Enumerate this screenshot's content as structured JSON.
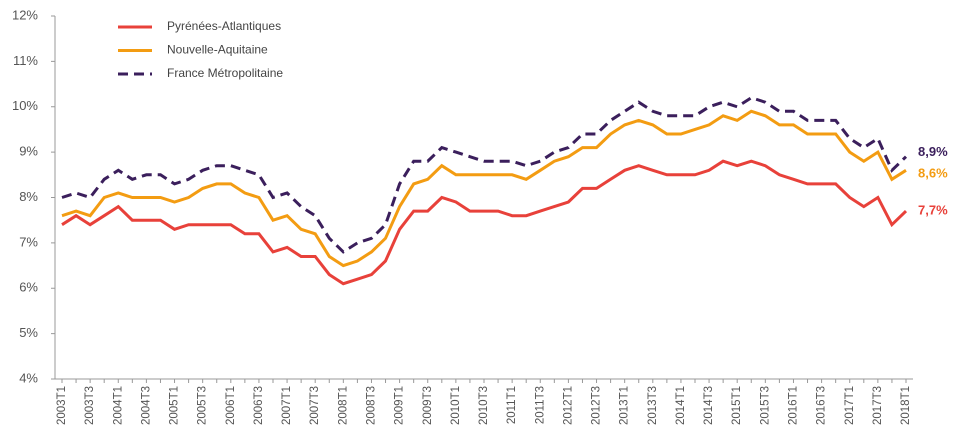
{
  "chart_data": {
    "type": "line",
    "categories": [
      "2003T1",
      null,
      "2003T3",
      null,
      "2004T1",
      null,
      "2004T3",
      null,
      "2005T1",
      null,
      "2005T3",
      null,
      "2006T1",
      null,
      "2006T3",
      null,
      "2007T1",
      null,
      "2007T3",
      null,
      "2008T1",
      null,
      "2008T3",
      null,
      "2009T1",
      null,
      "2009T3",
      null,
      "2010T1",
      null,
      "2010T3",
      null,
      "2011T1",
      null,
      "2011T3",
      null,
      "2012T1",
      null,
      "2012T3",
      null,
      "2013T1",
      null,
      "2013T3",
      null,
      "2014T1",
      null,
      "2014T3",
      null,
      "2015T1",
      null,
      "2015T3",
      null,
      "2016T1",
      null,
      "2016T3",
      null,
      "2017T1",
      null,
      "2017T3",
      null,
      "2018T1"
    ],
    "series": [
      {
        "name": "Pyrénées-Atlantiques",
        "color": "#e8413a",
        "dash": false,
        "values": [
          7.4,
          7.6,
          7.4,
          7.6,
          7.8,
          7.5,
          7.5,
          7.5,
          7.3,
          7.4,
          7.4,
          7.4,
          7.4,
          7.2,
          7.2,
          6.8,
          6.9,
          6.7,
          6.7,
          6.3,
          6.1,
          6.2,
          6.3,
          6.6,
          7.3,
          7.7,
          7.7,
          8.0,
          7.9,
          7.7,
          7.7,
          7.7,
          7.6,
          7.6,
          7.7,
          7.8,
          7.9,
          8.2,
          8.2,
          8.4,
          8.6,
          8.7,
          8.6,
          8.5,
          8.5,
          8.5,
          8.6,
          8.8,
          8.7,
          8.8,
          8.7,
          8.5,
          8.4,
          8.3,
          8.3,
          8.3,
          8.0,
          7.8,
          8.0,
          7.4,
          7.7
        ],
        "value_labels": [
          null,
          null,
          null,
          null,
          null,
          null,
          null,
          null,
          null,
          null,
          null,
          null,
          null,
          null,
          null,
          null,
          null,
          null,
          null,
          null,
          null,
          null,
          null,
          null,
          null,
          null,
          null,
          null,
          null,
          null,
          null,
          null,
          null,
          null,
          null,
          null,
          null,
          null,
          null,
          null,
          null,
          null,
          null,
          null,
          null,
          null,
          null,
          null,
          null,
          null,
          null,
          null,
          null,
          null,
          null,
          null,
          null,
          null,
          null,
          null,
          "7,7%"
        ]
      },
      {
        "name": "Nouvelle-Aquitaine",
        "color": "#f39c12",
        "dash": false,
        "values": [
          7.6,
          7.7,
          7.6,
          8.0,
          8.1,
          8.0,
          8.0,
          8.0,
          7.9,
          8.0,
          8.2,
          8.3,
          8.3,
          8.1,
          8.0,
          7.5,
          7.6,
          7.3,
          7.2,
          6.7,
          6.5,
          6.6,
          6.8,
          7.1,
          7.8,
          8.3,
          8.4,
          8.7,
          8.5,
          8.5,
          8.5,
          8.5,
          8.5,
          8.4,
          8.6,
          8.8,
          8.9,
          9.1,
          9.1,
          9.4,
          9.6,
          9.7,
          9.6,
          9.4,
          9.4,
          9.5,
          9.6,
          9.8,
          9.7,
          9.9,
          9.8,
          9.6,
          9.6,
          9.4,
          9.4,
          9.4,
          9.0,
          8.8,
          9.0,
          8.4,
          8.6
        ],
        "value_labels": [
          null,
          null,
          null,
          null,
          null,
          null,
          null,
          null,
          null,
          null,
          null,
          null,
          null,
          null,
          null,
          null,
          null,
          null,
          null,
          null,
          null,
          null,
          null,
          null,
          null,
          null,
          null,
          null,
          null,
          null,
          null,
          null,
          null,
          null,
          null,
          null,
          null,
          null,
          null,
          null,
          null,
          null,
          null,
          null,
          null,
          null,
          null,
          null,
          null,
          null,
          null,
          null,
          null,
          null,
          null,
          null,
          null,
          null,
          null,
          null,
          "8,6%"
        ]
      },
      {
        "name": "France Métropolitaine",
        "color": "#3b1f5c",
        "dash": true,
        "values": [
          8.0,
          8.1,
          8.0,
          8.4,
          8.6,
          8.4,
          8.5,
          8.5,
          8.3,
          8.4,
          8.6,
          8.7,
          8.7,
          8.6,
          8.5,
          8.0,
          8.1,
          7.8,
          7.6,
          7.1,
          6.8,
          7.0,
          7.1,
          7.4,
          8.3,
          8.8,
          8.8,
          9.1,
          9.0,
          8.9,
          8.8,
          8.8,
          8.8,
          8.7,
          8.8,
          9.0,
          9.1,
          9.4,
          9.4,
          9.7,
          9.9,
          10.1,
          9.9,
          9.8,
          9.8,
          9.8,
          10.0,
          10.1,
          10.0,
          10.2,
          10.1,
          9.9,
          9.9,
          9.7,
          9.7,
          9.7,
          9.3,
          9.1,
          9.3,
          8.6,
          8.9
        ],
        "value_labels": [
          null,
          null,
          null,
          null,
          null,
          null,
          null,
          null,
          null,
          null,
          null,
          null,
          null,
          null,
          null,
          null,
          null,
          null,
          null,
          null,
          null,
          null,
          null,
          null,
          null,
          null,
          null,
          null,
          null,
          null,
          null,
          null,
          null,
          null,
          null,
          null,
          null,
          null,
          null,
          null,
          null,
          null,
          null,
          null,
          null,
          null,
          null,
          null,
          null,
          null,
          null,
          null,
          null,
          null,
          null,
          null,
          null,
          null,
          null,
          null,
          "8,9%"
        ]
      }
    ],
    "ylim": [
      4,
      12
    ],
    "yticks": [
      {
        "value": 4,
        "label": "4%"
      },
      {
        "value": 5,
        "label": "5%"
      },
      {
        "value": 6,
        "label": "6%"
      },
      {
        "value": 7,
        "label": "7%"
      },
      {
        "value": 8,
        "label": "8%"
      },
      {
        "value": 9,
        "label": "9%"
      },
      {
        "value": 10,
        "label": "10%"
      },
      {
        "value": 11,
        "label": "11%"
      },
      {
        "value": 12,
        "label": "12%"
      }
    ],
    "grid": false,
    "legend": "top-left"
  }
}
